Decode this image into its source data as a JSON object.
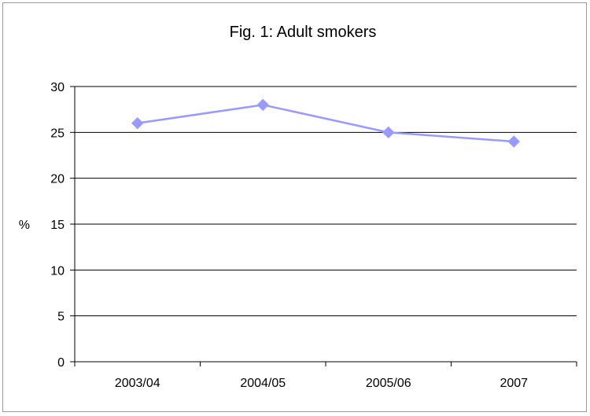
{
  "chart_data": {
    "type": "line",
    "title": "Fig. 1: Adult smokers",
    "xlabel": "",
    "ylabel": "%",
    "categories": [
      "2003/04",
      "2004/05",
      "2005/06",
      "2007"
    ],
    "series": [
      {
        "values": [
          26,
          28,
          25,
          24
        ]
      }
    ],
    "ylim": [
      0,
      30
    ],
    "yticks": [
      "0",
      "5",
      "10",
      "15",
      "20",
      "25",
      "30"
    ],
    "grid": true,
    "legend": "none",
    "colors": {
      "series": "#9999ff",
      "grid": "#000000",
      "axis": "#000000"
    }
  }
}
